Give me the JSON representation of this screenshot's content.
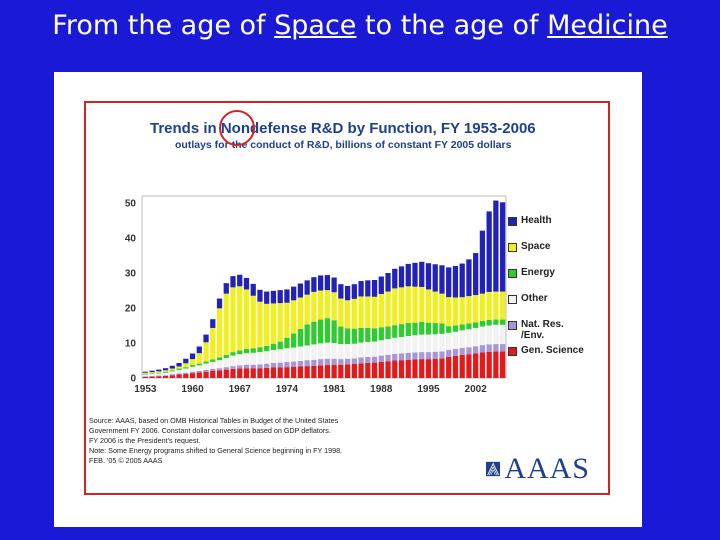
{
  "slide": {
    "title_parts": [
      "From the age of ",
      "Space",
      " to the age of ",
      "Medicine"
    ]
  },
  "source_lines": [
    "Source: AAAS, based on OMB Historical Tables in Budget of the United States",
    "Government FY 2006. Constant dollar conversions based on GDP deflators.",
    "FY 2006 is the President's request.",
    "Note: Some Energy programs shifted to General Science beginning in FY 1998.",
    "FEB. '05 © 2005 AAAS"
  ],
  "logo_text": "AAAS",
  "colors": {
    "slide_background": "#1a1ad6",
    "title_text": "#ffffff",
    "highlight": "#d32424",
    "chart_title": "#1f3f8f"
  },
  "chart_data": {
    "type": "bar",
    "stacked": true,
    "title": "Trends in Nondefense R&D by Function, FY 1953-2006",
    "subtitle": "outlays for the conduct of R&D, billions of constant FY 2005 dollars",
    "xlabel": "",
    "ylabel": "",
    "ylim": [
      0,
      52
    ],
    "yticks": [
      0,
      10,
      20,
      30,
      40,
      50
    ],
    "xtick_labels": [
      "1953",
      "1960",
      "1967",
      "1974",
      "1981",
      "1988",
      "1995",
      "2002"
    ],
    "grid": false,
    "legend_position": "right",
    "categories": [
      1953,
      1954,
      1955,
      1956,
      1957,
      1958,
      1959,
      1960,
      1961,
      1962,
      1963,
      1964,
      1965,
      1966,
      1967,
      1968,
      1969,
      1970,
      1971,
      1972,
      1973,
      1974,
      1975,
      1976,
      1977,
      1978,
      1979,
      1980,
      1981,
      1982,
      1983,
      1984,
      1985,
      1986,
      1987,
      1988,
      1989,
      1990,
      1991,
      1992,
      1993,
      1994,
      1995,
      1996,
      1997,
      1998,
      1999,
      2000,
      2001,
      2002,
      2003,
      2004,
      2005,
      2006
    ],
    "series": [
      {
        "name": "Gen. Science",
        "color": "#e31a1c",
        "values": [
          0.3,
          0.4,
          0.5,
          0.6,
          0.8,
          1.0,
          1.2,
          1.4,
          1.6,
          1.8,
          2.0,
          2.2,
          2.4,
          2.6,
          2.7,
          2.8,
          2.8,
          2.8,
          2.9,
          3.0,
          3.0,
          3.1,
          3.2,
          3.3,
          3.4,
          3.5,
          3.6,
          3.7,
          3.8,
          3.8,
          3.9,
          4.0,
          4.2,
          4.3,
          4.4,
          4.6,
          4.8,
          5.0,
          5.1,
          5.2,
          5.3,
          5.4,
          5.4,
          5.5,
          5.6,
          6.0,
          6.3,
          6.6,
          6.8,
          7.0,
          7.3,
          7.5,
          7.6,
          7.6
        ]
      },
      {
        "name": "Nat. Res. /Env.",
        "color": "#a896d8",
        "values": [
          0.2,
          0.2,
          0.2,
          0.2,
          0.3,
          0.3,
          0.3,
          0.4,
          0.4,
          0.5,
          0.6,
          0.6,
          0.7,
          0.8,
          0.9,
          1.0,
          1.0,
          1.1,
          1.2,
          1.3,
          1.4,
          1.5,
          1.5,
          1.6,
          1.7,
          1.7,
          1.8,
          1.8,
          1.7,
          1.6,
          1.6,
          1.6,
          1.7,
          1.7,
          1.7,
          1.8,
          1.8,
          1.9,
          1.9,
          2.0,
          2.0,
          2.0,
          2.0,
          2.0,
          2.0,
          2.0,
          2.0,
          2.0,
          2.0,
          2.1,
          2.1,
          2.1,
          2.1,
          2.1
        ]
      },
      {
        "name": "Other",
        "color": "#f2f2f2",
        "values": [
          0.5,
          0.6,
          0.6,
          0.7,
          0.8,
          1.0,
          1.2,
          1.4,
          1.6,
          1.8,
          2.0,
          2.3,
          2.6,
          3.0,
          3.2,
          3.3,
          3.4,
          3.5,
          3.6,
          3.7,
          3.8,
          3.9,
          4.0,
          4.1,
          4.2,
          4.4,
          4.5,
          4.6,
          4.5,
          4.3,
          4.2,
          4.2,
          4.2,
          4.3,
          4.3,
          4.4,
          4.5,
          4.6,
          4.7,
          4.8,
          4.9,
          5.0,
          5.0,
          5.0,
          5.0,
          4.9,
          4.9,
          5.0,
          5.1,
          5.2,
          5.3,
          5.4,
          5.5,
          5.5
        ]
      },
      {
        "name": "Energy",
        "color": "#2ecc2e",
        "values": [
          0.2,
          0.2,
          0.2,
          0.3,
          0.3,
          0.4,
          0.4,
          0.5,
          0.5,
          0.6,
          0.7,
          0.8,
          0.9,
          1.0,
          1.1,
          1.2,
          1.3,
          1.4,
          1.5,
          1.8,
          2.2,
          3.0,
          4.0,
          5.0,
          6.0,
          6.5,
          6.8,
          7.0,
          6.5,
          5.0,
          4.5,
          4.3,
          4.2,
          4.0,
          3.8,
          3.7,
          3.6,
          3.6,
          3.7,
          3.7,
          3.6,
          3.6,
          3.4,
          3.2,
          3.0,
          1.9,
          1.8,
          1.7,
          1.7,
          1.6,
          1.6,
          1.6,
          1.5,
          1.5
        ]
      },
      {
        "name": "Space",
        "color": "#f0f020",
        "values": [
          0.3,
          0.3,
          0.4,
          0.4,
          0.5,
          0.6,
          1.1,
          1.7,
          3.0,
          5.5,
          9.0,
          14.0,
          17.5,
          18.5,
          18.3,
          17.0,
          15.0,
          13.0,
          12.0,
          11.5,
          11.0,
          10.0,
          9.5,
          9.0,
          8.5,
          8.5,
          8.3,
          8.0,
          8.0,
          8.0,
          8.0,
          8.5,
          9.0,
          9.0,
          9.0,
          9.5,
          10.0,
          10.5,
          10.5,
          10.5,
          10.3,
          10.0,
          9.5,
          9.0,
          8.5,
          8.3,
          8.0,
          7.8,
          7.8,
          7.8,
          7.8,
          8.0,
          8.0,
          8.0
        ]
      },
      {
        "name": "Health",
        "color": "#2222b8",
        "values": [
          0.3,
          0.4,
          0.5,
          0.6,
          0.8,
          1.0,
          1.3,
          1.6,
          1.9,
          2.2,
          2.5,
          2.8,
          3.0,
          3.2,
          3.3,
          3.3,
          3.4,
          3.4,
          3.5,
          3.6,
          3.7,
          3.8,
          3.9,
          4.0,
          4.1,
          4.2,
          4.3,
          4.3,
          4.2,
          4.1,
          4.1,
          4.2,
          4.4,
          4.6,
          4.8,
          5.0,
          5.3,
          5.6,
          6.0,
          6.4,
          6.8,
          7.2,
          7.5,
          7.8,
          8.1,
          8.5,
          9.0,
          9.6,
          10.5,
          12.0,
          18.0,
          23.0,
          26.0,
          25.5
        ]
      }
    ]
  }
}
